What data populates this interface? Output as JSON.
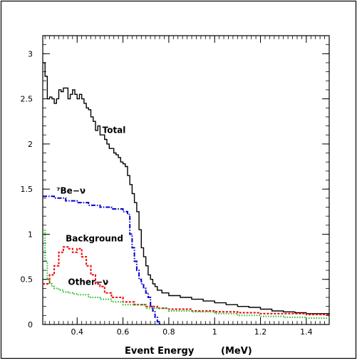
{
  "chart_data": {
    "type": "line",
    "xlabel": "Event Energy",
    "xunit": "(MeV)",
    "xlim": [
      0.25,
      1.5
    ],
    "ylim": [
      0,
      3.2
    ],
    "x_ticks": [
      "0.4",
      "0.6",
      "0.8",
      "1",
      "1.2",
      "1.4"
    ],
    "y_ticks": [
      "0",
      "0.5",
      "1",
      "1.5",
      "2",
      "2.5",
      "3"
    ],
    "grid": false,
    "series": [
      {
        "name": "Total",
        "color": "#000000",
        "style": "solid-step",
        "x": [
          0.25,
          0.26,
          0.27,
          0.28,
          0.29,
          0.3,
          0.31,
          0.32,
          0.33,
          0.34,
          0.35,
          0.36,
          0.37,
          0.38,
          0.39,
          0.4,
          0.41,
          0.42,
          0.43,
          0.44,
          0.45,
          0.46,
          0.47,
          0.48,
          0.49,
          0.5,
          0.51,
          0.52,
          0.53,
          0.54,
          0.55,
          0.56,
          0.57,
          0.58,
          0.59,
          0.6,
          0.61,
          0.62,
          0.63,
          0.64,
          0.65,
          0.66,
          0.67,
          0.68,
          0.69,
          0.7,
          0.71,
          0.72,
          0.73,
          0.74,
          0.75,
          0.77,
          0.8,
          0.85,
          0.9,
          0.95,
          1.0,
          1.05,
          1.1,
          1.15,
          1.2,
          1.25,
          1.3,
          1.35,
          1.4,
          1.45,
          1.5
        ],
        "y": [
          2.9,
          2.75,
          2.5,
          2.52,
          2.5,
          2.45,
          2.5,
          2.6,
          2.58,
          2.62,
          2.62,
          2.5,
          2.55,
          2.6,
          2.55,
          2.5,
          2.55,
          2.5,
          2.45,
          2.4,
          2.38,
          2.3,
          2.25,
          2.15,
          2.2,
          2.1,
          2.1,
          2.05,
          2.0,
          1.95,
          1.95,
          1.9,
          1.88,
          1.85,
          1.8,
          1.78,
          1.75,
          1.65,
          1.55,
          1.45,
          1.35,
          1.25,
          1.05,
          0.85,
          0.75,
          0.65,
          0.55,
          0.5,
          0.45,
          0.42,
          0.38,
          0.35,
          0.32,
          0.3,
          0.28,
          0.26,
          0.24,
          0.22,
          0.2,
          0.19,
          0.17,
          0.15,
          0.14,
          0.13,
          0.12,
          0.12,
          0.11
        ]
      },
      {
        "name": "⁷Be-ν",
        "color": "#0000cc",
        "style": "dash-dot",
        "x": [
          0.25,
          0.3,
          0.35,
          0.4,
          0.45,
          0.5,
          0.55,
          0.6,
          0.62,
          0.63,
          0.64,
          0.65,
          0.66,
          0.67,
          0.68,
          0.69,
          0.7,
          0.71,
          0.72,
          0.73,
          0.74,
          0.75,
          0.76
        ],
        "y": [
          1.42,
          1.4,
          1.37,
          1.35,
          1.32,
          1.3,
          1.28,
          1.25,
          1.22,
          1.0,
          0.85,
          0.7,
          0.6,
          0.5,
          0.45,
          0.4,
          0.35,
          0.3,
          0.2,
          0.15,
          0.08,
          0.03,
          0.0
        ]
      },
      {
        "name": "Background",
        "color": "#ee0000",
        "style": "dashed",
        "x": [
          0.25,
          0.28,
          0.3,
          0.32,
          0.34,
          0.36,
          0.38,
          0.4,
          0.42,
          0.44,
          0.46,
          0.48,
          0.5,
          0.52,
          0.55,
          0.6,
          0.65,
          0.7,
          0.75,
          0.8,
          0.9,
          1.0,
          1.1,
          1.2,
          1.3,
          1.4,
          1.5
        ],
        "y": [
          0.45,
          0.55,
          0.65,
          0.8,
          0.86,
          0.84,
          0.8,
          0.84,
          0.75,
          0.65,
          0.55,
          0.45,
          0.42,
          0.35,
          0.3,
          0.25,
          0.22,
          0.2,
          0.18,
          0.17,
          0.15,
          0.14,
          0.13,
          0.12,
          0.12,
          0.11,
          0.1
        ]
      },
      {
        "name": "Other-ν",
        "color": "#22bb22",
        "style": "dotted",
        "x": [
          0.25,
          0.26,
          0.27,
          0.28,
          0.29,
          0.3,
          0.32,
          0.34,
          0.36,
          0.38,
          0.4,
          0.45,
          0.5,
          0.55,
          0.6,
          0.7,
          0.8,
          0.9,
          1.0,
          1.1,
          1.2,
          1.3,
          1.4,
          1.5
        ],
        "y": [
          1.05,
          0.7,
          0.5,
          0.45,
          0.42,
          0.4,
          0.38,
          0.36,
          0.35,
          0.34,
          0.33,
          0.3,
          0.28,
          0.25,
          0.22,
          0.18,
          0.15,
          0.14,
          0.12,
          0.1,
          0.09,
          0.08,
          0.07,
          0.06
        ]
      }
    ],
    "annotations": [
      {
        "text": "Total",
        "x": 0.51,
        "y": 2.12,
        "color": "#000000"
      },
      {
        "text": "⁷Be−ν",
        "x": 0.31,
        "y": 1.45,
        "color": "#000000"
      },
      {
        "text": "Background",
        "x": 0.35,
        "y": 0.92,
        "color": "#000000"
      },
      {
        "text": "Other−ν",
        "x": 0.36,
        "y": 0.44,
        "color": "#000000"
      }
    ]
  }
}
